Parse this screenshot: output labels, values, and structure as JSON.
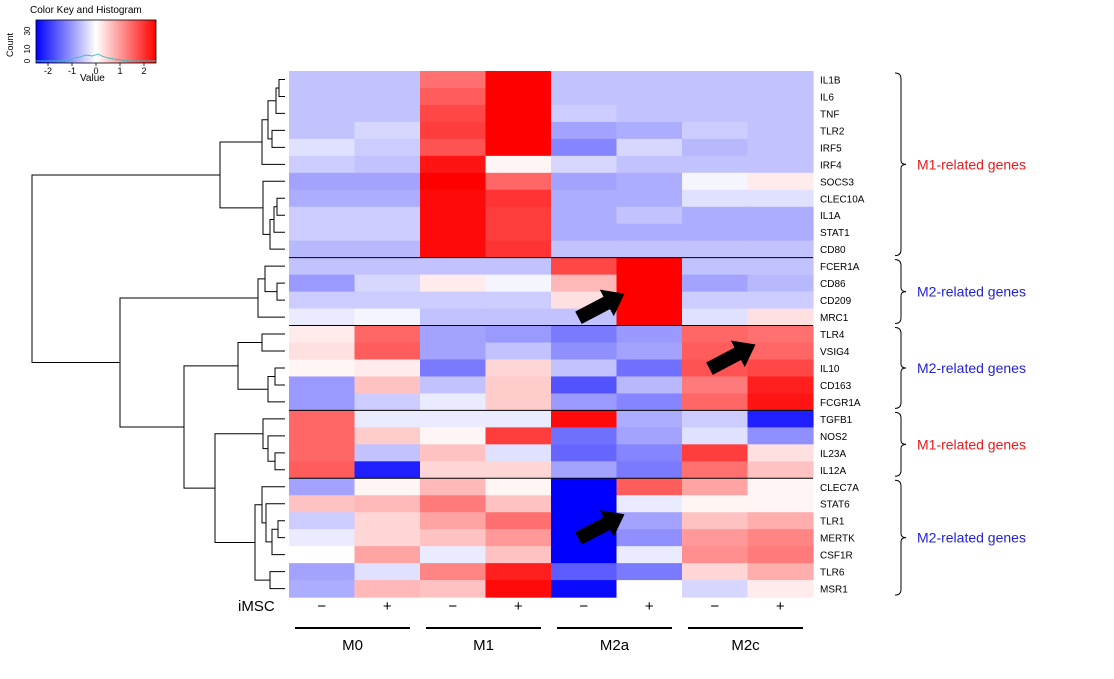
{
  "chart_data": {
    "type": "heatmap",
    "color_key": {
      "title": "Color Key and Histogram",
      "ylabel": "Count",
      "yticks": [
        "0",
        "10",
        "30"
      ],
      "xlabel": "Value",
      "xticks": [
        "-2",
        "-1",
        "0",
        "1",
        "2"
      ],
      "xtick_values": [
        -2,
        -1,
        0,
        1,
        2
      ],
      "range": [
        -2.5,
        2.5
      ],
      "low_color": "#0000ff",
      "mid_color": "#ffffff",
      "high_color": "#ff0000"
    },
    "columns": [
      "M0 -",
      "M0 +",
      "M1 -",
      "M1 +",
      "M2a -",
      "M2a +",
      "M2c -",
      "M2c +"
    ],
    "row_label_iMSC": "iMSC",
    "imsc_signs": [
      "−",
      "+",
      "−",
      "+",
      "−",
      "+",
      "−",
      "+"
    ],
    "groups": [
      "M0",
      "M1",
      "M2a",
      "M2c"
    ],
    "rows": [
      "IL1B",
      "IL6",
      "TNF",
      "TLR2",
      "IRF5",
      "IRF4",
      "SOCS3",
      "CLEC10A",
      "IL1A",
      "STAT1",
      "CD80",
      "FCER1A",
      "CD86",
      "CD209",
      "MRC1",
      "TLR4",
      "VSIG4",
      "IL10",
      "CD163",
      "FCGR1A",
      "TGFB1",
      "NOS2",
      "IL23A",
      "IL12A",
      "CLEC7A",
      "STAT6",
      "TLR1",
      "MERTK",
      "CSF1R",
      "TLR6",
      "MSR1"
    ],
    "values": [
      [
        -0.6,
        -0.6,
        1.4,
        2.5,
        -0.6,
        -0.6,
        -0.6,
        -0.6
      ],
      [
        -0.6,
        -0.6,
        1.6,
        2.5,
        -0.6,
        -0.6,
        -0.6,
        -0.6
      ],
      [
        -0.6,
        -0.6,
        1.8,
        2.5,
        -0.5,
        -0.6,
        -0.6,
        -0.6
      ],
      [
        -0.6,
        -0.4,
        1.9,
        2.5,
        -0.9,
        -0.8,
        -0.5,
        -0.6
      ],
      [
        -0.3,
        -0.5,
        1.7,
        2.5,
        -1.2,
        -0.4,
        -0.7,
        -0.6
      ],
      [
        -0.5,
        -0.6,
        2.3,
        0.1,
        -0.4,
        -0.6,
        -0.6,
        -0.6
      ],
      [
        -0.9,
        -0.9,
        2.5,
        1.5,
        -0.9,
        -0.8,
        -0.1,
        0.2
      ],
      [
        -0.8,
        -0.8,
        2.4,
        2.0,
        -0.8,
        -0.8,
        -0.3,
        -0.3
      ],
      [
        -0.5,
        -0.5,
        2.4,
        1.9,
        -0.8,
        -0.6,
        -0.8,
        -0.8
      ],
      [
        -0.5,
        -0.5,
        2.4,
        1.9,
        -0.8,
        -0.8,
        -0.8,
        -0.8
      ],
      [
        -0.7,
        -0.7,
        2.4,
        2.0,
        -0.6,
        -0.6,
        -0.6,
        -0.6
      ],
      [
        -0.6,
        -0.6,
        -0.6,
        -0.6,
        1.8,
        2.5,
        -0.6,
        -0.6
      ],
      [
        -1.0,
        -0.4,
        0.2,
        -0.1,
        0.7,
        2.5,
        -0.9,
        -0.7
      ],
      [
        -0.5,
        -0.5,
        -0.5,
        -0.5,
        0.3,
        2.5,
        -0.5,
        -0.5
      ],
      [
        -0.2,
        -0.1,
        -0.6,
        -0.6,
        -0.6,
        2.5,
        -0.3,
        0.3
      ],
      [
        0.2,
        1.5,
        -0.9,
        -1.0,
        -1.3,
        -1.0,
        1.5,
        1.4
      ],
      [
        0.3,
        1.6,
        -0.9,
        -0.6,
        -1.1,
        -0.9,
        1.6,
        1.5
      ],
      [
        0.1,
        0.2,
        -1.3,
        0.4,
        -0.6,
        -1.4,
        1.7,
        1.8
      ],
      [
        -1.0,
        0.6,
        -0.6,
        0.5,
        -1.7,
        -0.7,
        1.3,
        2.2
      ],
      [
        -1.0,
        -0.5,
        -0.2,
        0.5,
        -1.0,
        -1.2,
        1.5,
        2.3
      ],
      [
        1.5,
        -0.2,
        -0.2,
        -0.2,
        2.4,
        -0.8,
        -0.5,
        -2.2
      ],
      [
        1.5,
        0.5,
        0.1,
        1.9,
        -1.4,
        -0.9,
        -0.3,
        -1.1
      ],
      [
        1.5,
        -0.6,
        0.6,
        -0.3,
        -1.5,
        -1.2,
        1.9,
        0.3
      ],
      [
        1.6,
        -2.2,
        0.4,
        0.4,
        -0.9,
        -1.3,
        1.4,
        0.6
      ],
      [
        -0.9,
        0.1,
        0.7,
        0.1,
        -2.6,
        1.6,
        0.9,
        0.1
      ],
      [
        0.6,
        0.7,
        1.3,
        0.6,
        -2.6,
        -0.2,
        0.1,
        0.1
      ],
      [
        -0.5,
        0.4,
        0.9,
        1.4,
        -2.6,
        -0.9,
        0.6,
        0.8
      ],
      [
        -0.2,
        0.4,
        0.6,
        1.0,
        -2.6,
        -1.1,
        1.0,
        1.2
      ],
      [
        0.0,
        0.9,
        -0.2,
        0.6,
        -2.6,
        -0.2,
        1.1,
        1.3
      ],
      [
        -0.9,
        -0.3,
        1.2,
        2.2,
        -1.6,
        -1.3,
        0.4,
        0.8
      ],
      [
        -0.8,
        0.7,
        0.6,
        2.4,
        -2.4,
        0.0,
        -0.4,
        0.2
      ]
    ],
    "gene_groups": [
      {
        "label": "M1-related genes",
        "color": "#e8191d",
        "start": 0,
        "end": 10
      },
      {
        "label": "M2-related genes",
        "color": "#1f1fd6",
        "start": 11,
        "end": 14
      },
      {
        "label": "M2-related genes",
        "color": "#1f1fd6",
        "start": 15,
        "end": 19
      },
      {
        "label": "M1-related genes",
        "color": "#e8191d",
        "start": 20,
        "end": 23
      },
      {
        "label": "M2-related genes",
        "color": "#1f1fd6",
        "start": 24,
        "end": 30
      }
    ],
    "separators_after_rows": [
      10,
      14,
      19,
      23
    ],
    "arrows": [
      {
        "row": 13,
        "col": 5
      },
      {
        "row": 16,
        "col": 7
      },
      {
        "row": 26,
        "col": 5
      }
    ]
  }
}
